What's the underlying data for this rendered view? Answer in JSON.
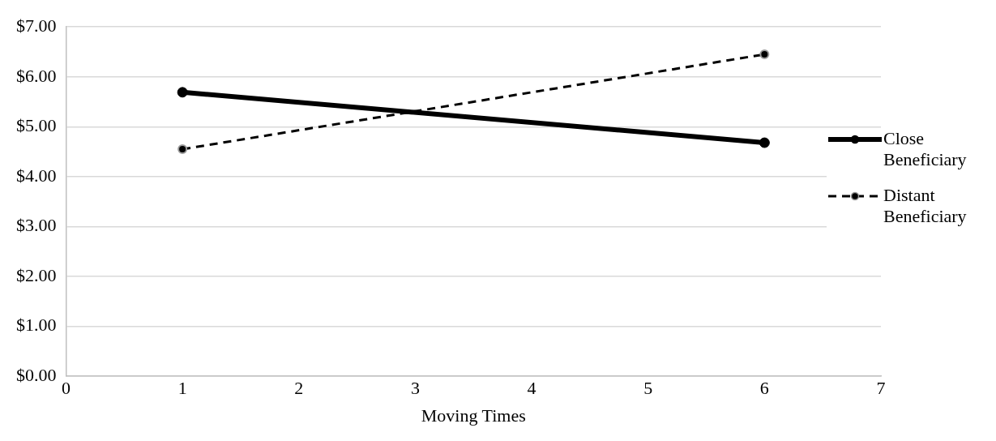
{
  "chart_data": {
    "type": "line",
    "xlabel": "Moving Times",
    "x": [
      1,
      6
    ],
    "series": [
      {
        "name": "Close Beneficiary",
        "color": "#000000",
        "values": [
          5.69,
          4.68
        ],
        "line_style": "solid"
      },
      {
        "name": "Distant Beneficiary",
        "color": "#000000",
        "values": [
          4.55,
          6.45
        ],
        "line_style": "dashed"
      }
    ],
    "xlim": [
      0,
      7
    ],
    "xticks": [
      0,
      1,
      2,
      3,
      4,
      5,
      6,
      7
    ],
    "ylim": [
      0,
      7
    ],
    "yticks": [
      {
        "value": 0,
        "label": "$0.00"
      },
      {
        "value": 1,
        "label": "$1.00"
      },
      {
        "value": 2,
        "label": "$2.00"
      },
      {
        "value": 3,
        "label": "$3.00"
      },
      {
        "value": 4,
        "label": "$4.00"
      },
      {
        "value": 5,
        "label": "$5.00"
      },
      {
        "value": 6,
        "label": "$6.00"
      },
      {
        "value": 7,
        "label": "$7.00"
      }
    ],
    "grid": "y",
    "legend": "right",
    "marker": "circle"
  }
}
